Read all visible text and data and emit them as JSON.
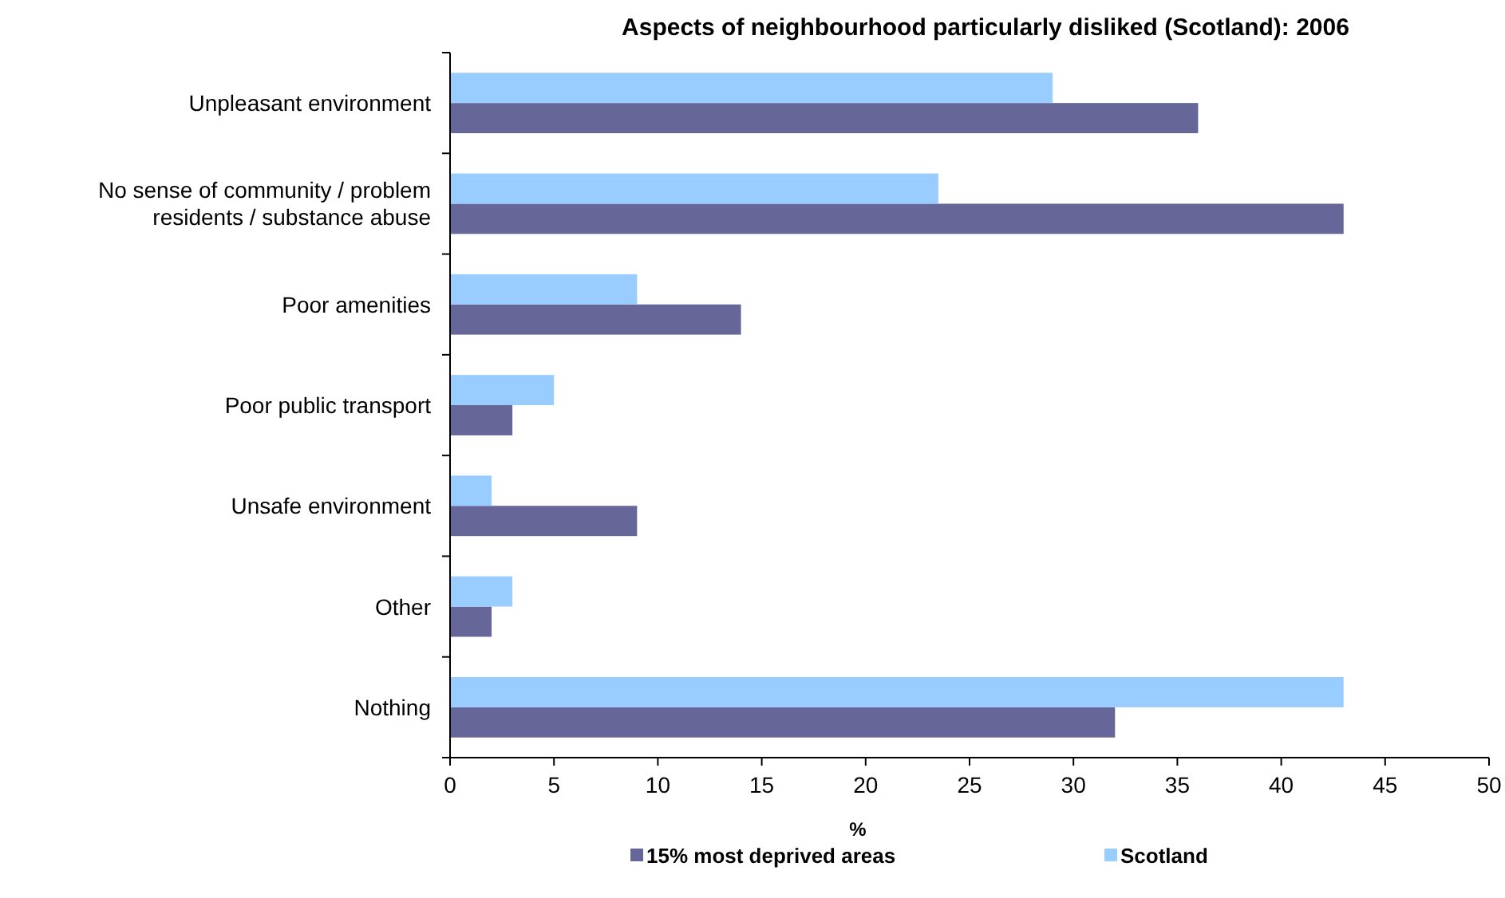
{
  "chart_data": {
    "type": "bar",
    "orientation": "horizontal",
    "title": "Aspects of neighbourhood particularly disliked (Scotland): 2006",
    "xlabel": "%",
    "categories": [
      "Unpleasant environment",
      "No sense of community / problem residents / substance abuse",
      "Poor amenities",
      "Poor public transport",
      "Unsafe environment",
      "Other",
      "Nothing"
    ],
    "series": [
      {
        "name": "15% most deprived areas",
        "color": "#666699",
        "values": [
          36,
          43,
          14,
          3,
          9,
          2,
          32
        ]
      },
      {
        "name": "Scotland",
        "color": "#99ccff",
        "values": [
          29,
          23.5,
          9,
          5,
          2,
          3,
          43
        ]
      }
    ],
    "xlim": [
      0,
      50
    ],
    "xticks": [
      0,
      5,
      10,
      15,
      20,
      25,
      30,
      35,
      40,
      45,
      50
    ],
    "grid": false,
    "legend": "bottom"
  }
}
